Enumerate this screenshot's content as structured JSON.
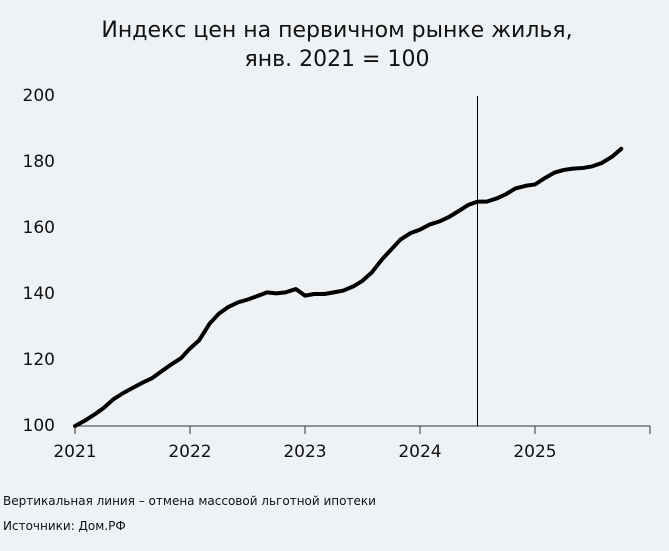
{
  "chart_data": {
    "type": "line",
    "title": [
      "Индекс цен на первичном рынке жилья,",
      "янв. 2021 = 100"
    ],
    "x": [
      2021,
      2021.08,
      2021.17,
      2021.25,
      2021.33,
      2021.42,
      2021.5,
      2021.58,
      2021.67,
      2021.75,
      2021.83,
      2021.92,
      2022,
      2022.08,
      2022.17,
      2022.25,
      2022.33,
      2022.42,
      2022.5,
      2022.58,
      2022.67,
      2022.75,
      2022.83,
      2022.92,
      2023,
      2023.08,
      2023.17,
      2023.25,
      2023.33,
      2023.42,
      2023.5,
      2023.58,
      2023.67,
      2023.75,
      2023.83,
      2023.92,
      2024,
      2024.08,
      2024.17,
      2024.25,
      2024.33,
      2024.42,
      2024.5,
      2024.58,
      2024.67,
      2024.75,
      2024.83,
      2024.92,
      2025,
      2025.08,
      2025.17,
      2025.25,
      2025.33,
      2025.42,
      2025.5,
      2025.58,
      2025.67,
      2025.75
    ],
    "values": [
      100,
      101.5,
      103.5,
      105.5,
      108,
      110,
      111.5,
      113,
      114.5,
      116.5,
      118.5,
      120.5,
      123.5,
      126,
      131,
      134,
      136,
      137.5,
      138.3,
      139.3,
      140.5,
      140.2,
      140.5,
      141.5,
      139.5,
      140,
      140,
      140.5,
      141,
      142.3,
      144,
      146.5,
      150.5,
      153.5,
      156.5,
      158.5,
      159.5,
      161,
      162,
      163.3,
      165,
      167,
      168,
      168,
      169,
      170.3,
      172,
      172.8,
      173.2,
      175,
      176.8,
      177.6,
      178,
      178.2,
      178.7,
      179.7,
      181.6,
      184
    ],
    "color": "#000000",
    "xlim": [
      2021,
      2026
    ],
    "xticks": [
      2021,
      2022,
      2023,
      2024,
      2025
    ],
    "ylim": [
      100,
      200
    ],
    "yticks": [
      100,
      120,
      140,
      160,
      180,
      200
    ],
    "vline": 2024.5,
    "notes": [
      "Вертикальная линия – отмена массовой льготной ипотеки",
      "Источники: Дом.РФ"
    ]
  }
}
